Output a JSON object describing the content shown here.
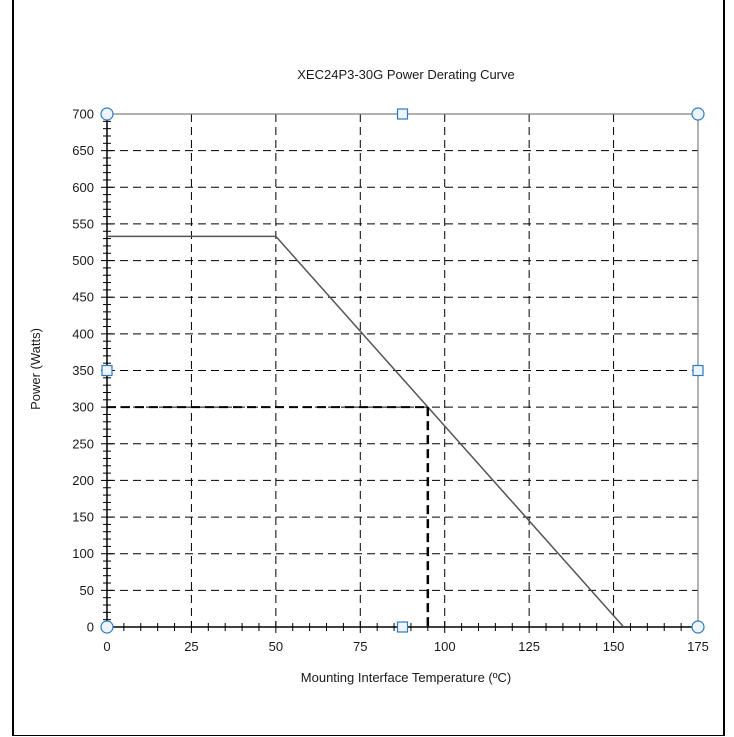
{
  "chart_data": {
    "type": "line",
    "title": "XEC24P3-30G  Power Derating Curve",
    "xlabel": "Mounting  Interface Temperature  (ºC)",
    "ylabel": "Power (Watts)",
    "xlim": [
      0,
      175
    ],
    "ylim": [
      0,
      700
    ],
    "x_ticks": [
      0,
      25,
      50,
      75,
      100,
      125,
      150,
      175
    ],
    "y_ticks": [
      0,
      50,
      100,
      150,
      200,
      250,
      300,
      350,
      400,
      450,
      500,
      550,
      600,
      650,
      700
    ],
    "grid": true,
    "grid_style": "dashed",
    "series": [
      {
        "color": "#555555",
        "x": [
          0,
          50,
          153
        ],
        "y": [
          533,
          533,
          0
        ]
      }
    ],
    "annotations": [
      {
        "type": "dashed-guide",
        "x": 95,
        "y": 300,
        "color": "#000000"
      }
    ],
    "handle_color": "#2e7bbf"
  }
}
